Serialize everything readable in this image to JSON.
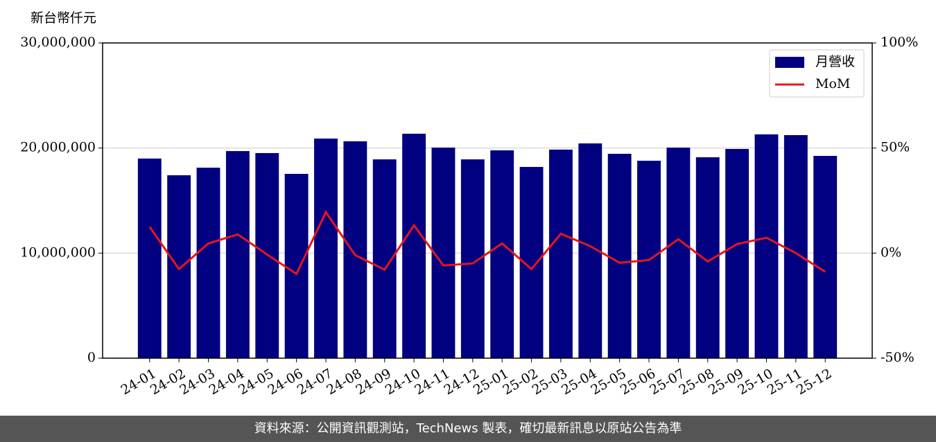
{
  "chart_data": {
    "type": "bar-line",
    "y_label": "新台幣仟元",
    "categories": [
      "24-01",
      "24-02",
      "24-03",
      "24-04",
      "24-05",
      "24-06",
      "24-07",
      "24-08",
      "24-09",
      "24-10",
      "24-11",
      "24-12",
      "25-01",
      "25-02",
      "25-03",
      "25-04",
      "25-05",
      "25-06",
      "25-07",
      "25-08",
      "25-09",
      "25-10",
      "25-11",
      "25-12"
    ],
    "series": [
      {
        "name": "月營收",
        "type": "bar",
        "color": "#000080",
        "values": [
          19000000,
          17410000,
          18130000,
          19710000,
          19520000,
          17540000,
          20900000,
          20640000,
          18920000,
          21360000,
          20040000,
          18920000,
          19780000,
          18200000,
          19850000,
          20440000,
          19450000,
          18790000,
          20040000,
          19120000,
          19910000,
          21300000,
          21230000,
          19250000
        ]
      },
      {
        "name": "MoM",
        "type": "line",
        "axis": "y2",
        "color": "#e8141b",
        "values": [
          12.5,
          -7.6,
          4.6,
          8.9,
          -0.7,
          -9.9,
          19.5,
          -1.0,
          -7.9,
          13.2,
          -5.9,
          -4.9,
          4.6,
          -7.6,
          9.2,
          3.3,
          -4.6,
          -3.3,
          6.6,
          -4.0,
          4.3,
          7.3,
          0,
          -8.9
        ]
      }
    ],
    "ylim": [
      0,
      30000000
    ],
    "yticks": [
      0,
      {
        "value": 10000000,
        "label": "10,000,000"
      },
      {
        "value": 20000000,
        "label": "20,000,000"
      },
      {
        "value": 30000000,
        "label": "30,000,000"
      }
    ],
    "y2lim": [
      -50,
      100
    ],
    "y2ticks": [
      {
        "value": -50,
        "label": "-50%"
      },
      {
        "value": 0,
        "label": "0%"
      },
      {
        "value": 50,
        "label": "50%"
      },
      {
        "value": 100,
        "label": "100%"
      }
    ],
    "grid": true,
    "legend": "upper right",
    "footer": "資料來源：公開資訊觀測站，TechNews 製表，確切最新訊息以原站公告為準"
  }
}
